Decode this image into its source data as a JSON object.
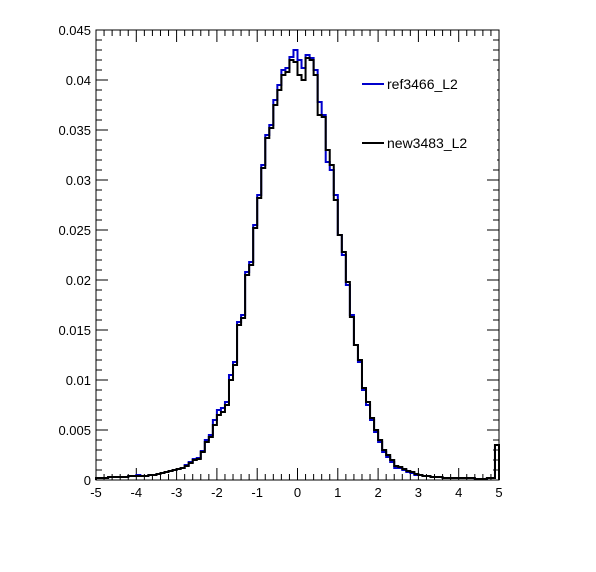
{
  "chart_data": {
    "type": "line",
    "step": true,
    "title": "",
    "xlabel": "",
    "ylabel": "",
    "xlim": [
      -5,
      5
    ],
    "ylim": [
      0,
      0.045
    ],
    "x_ticks": [
      "-5",
      "-4",
      "-3",
      "-2",
      "-1",
      "0",
      "1",
      "2",
      "3",
      "4",
      "5"
    ],
    "y_ticks": [
      "0",
      "0.005",
      "0.01",
      "0.015",
      "0.02",
      "0.025",
      "0.03",
      "0.035",
      "0.04",
      "0.045"
    ],
    "grid": false,
    "legend_position": "top-right",
    "bin_edges": [
      -5,
      -4.9,
      -4.8,
      -4.7,
      -4.6,
      -4.5,
      -4.4,
      -4.3,
      -4.2,
      -4.1,
      -4,
      -3.9,
      -3.8,
      -3.7,
      -3.6,
      -3.5,
      -3.4,
      -3.3,
      -3.2,
      -3.1,
      -3,
      -2.9,
      -2.8,
      -2.7,
      -2.6,
      -2.5,
      -2.4,
      -2.3,
      -2.2,
      -2.1,
      -2,
      -1.9,
      -1.8,
      -1.7,
      -1.6,
      -1.5,
      -1.4,
      -1.3,
      -1.2,
      -1.1,
      -1,
      -0.9,
      -0.8,
      -0.7,
      -0.6,
      -0.5,
      -0.4,
      -0.3,
      -0.2,
      -0.1,
      0,
      0.1,
      0.2,
      0.3,
      0.4,
      0.5,
      0.6,
      0.7,
      0.8,
      0.9,
      1,
      1.1,
      1.2,
      1.3,
      1.4,
      1.5,
      1.6,
      1.7,
      1.8,
      1.9,
      2,
      2.1,
      2.2,
      2.3,
      2.4,
      2.5,
      2.6,
      2.7,
      2.8,
      2.9,
      3,
      3.1,
      3.2,
      3.3,
      3.4,
      3.5,
      3.6,
      3.7,
      3.8,
      3.9,
      4,
      4.1,
      4.2,
      4.3,
      4.4,
      4.5,
      4.6,
      4.7,
      4.8,
      4.9,
      5
    ],
    "series": [
      {
        "name": "ref3466_L2",
        "color": "#0000cc",
        "values": [
          0.0002,
          0.0002,
          0.0002,
          0.0003,
          0.0003,
          0.0003,
          0.0003,
          0.0003,
          0.0004,
          0.0004,
          0.0005,
          0.0004,
          0.0004,
          0.0005,
          0.0005,
          0.0006,
          0.0007,
          0.0008,
          0.0009,
          0.001,
          0.0011,
          0.0012,
          0.0015,
          0.0018,
          0.0021,
          0.0022,
          0.0029,
          0.004,
          0.0045,
          0.006,
          0.007,
          0.0072,
          0.0078,
          0.0105,
          0.0118,
          0.0158,
          0.0165,
          0.0208,
          0.0218,
          0.0255,
          0.0285,
          0.0315,
          0.0345,
          0.0355,
          0.038,
          0.0395,
          0.041,
          0.0412,
          0.0423,
          0.043,
          0.042,
          0.0412,
          0.0425,
          0.0422,
          0.041,
          0.0378,
          0.0365,
          0.0318,
          0.031,
          0.0285,
          0.0245,
          0.0225,
          0.0195,
          0.0165,
          0.0135,
          0.0118,
          0.009,
          0.0075,
          0.006,
          0.0048,
          0.0038,
          0.0028,
          0.0023,
          0.0018,
          0.0012,
          0.0012,
          0.001,
          0.0008,
          0.0007,
          0.0005,
          0.0005,
          0.0004,
          0.0004,
          0.0003,
          0.0003,
          0.0003,
          0.0002,
          0.0002,
          0.0002,
          0.0002,
          0.0002,
          0.0002,
          0.0002,
          0.0002,
          0.0001,
          0.0001,
          0.0001,
          0.0002,
          0.0002,
          0.0035
        ]
      },
      {
        "name": "new3483_L2",
        "color": "#000000",
        "values": [
          0.0002,
          0.0002,
          0.0002,
          0.0003,
          0.0003,
          0.0003,
          0.0003,
          0.0003,
          0.0004,
          0.0004,
          0.0004,
          0.0004,
          0.0004,
          0.0005,
          0.0005,
          0.0006,
          0.0007,
          0.0008,
          0.0009,
          0.001,
          0.0011,
          0.0012,
          0.0014,
          0.0017,
          0.002,
          0.0021,
          0.0028,
          0.0038,
          0.0043,
          0.0055,
          0.0065,
          0.0068,
          0.0075,
          0.01,
          0.0115,
          0.0155,
          0.0162,
          0.0205,
          0.0215,
          0.0252,
          0.0282,
          0.0312,
          0.0342,
          0.0352,
          0.0375,
          0.039,
          0.0405,
          0.0408,
          0.042,
          0.0418,
          0.0405,
          0.04,
          0.0422,
          0.042,
          0.0405,
          0.0365,
          0.0363,
          0.033,
          0.0315,
          0.028,
          0.0245,
          0.0228,
          0.0198,
          0.0163,
          0.0135,
          0.012,
          0.0092,
          0.0078,
          0.0062,
          0.005,
          0.004,
          0.003,
          0.0025,
          0.002,
          0.0014,
          0.0013,
          0.0011,
          0.0009,
          0.0008,
          0.0006,
          0.0005,
          0.0004,
          0.0004,
          0.0003,
          0.0003,
          0.0003,
          0.0002,
          0.0002,
          0.0002,
          0.0002,
          0.0002,
          0.0002,
          0.0002,
          0.0002,
          0.0001,
          0.0001,
          0.0001,
          0.0002,
          0.0002,
          0.0035
        ]
      }
    ]
  }
}
